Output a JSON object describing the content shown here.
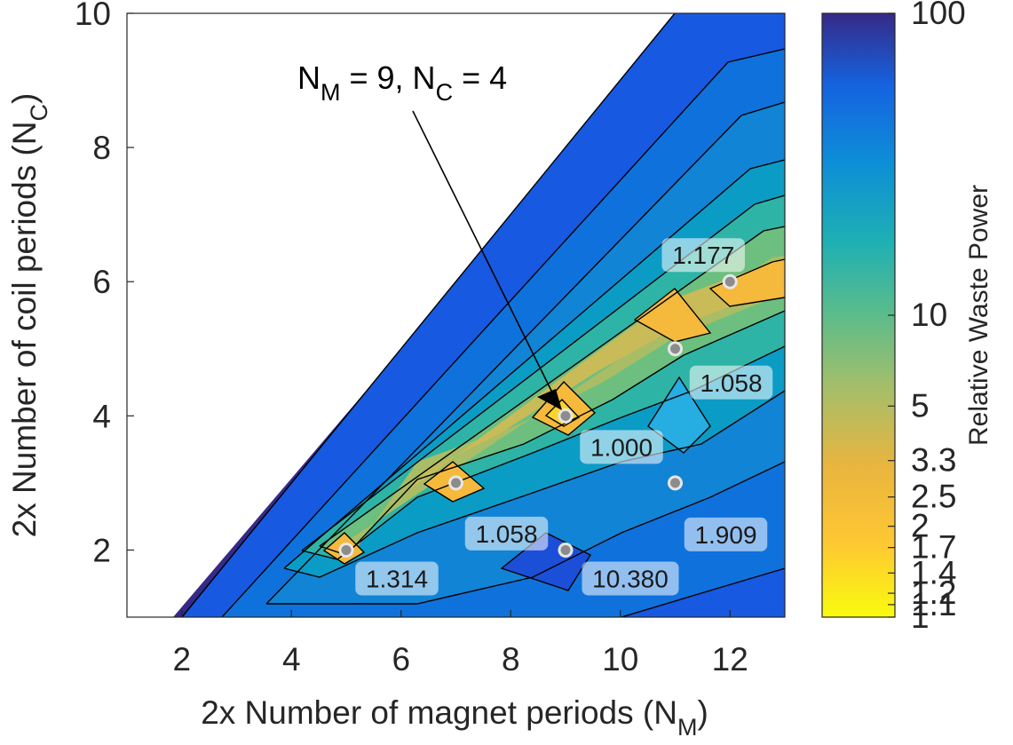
{
  "chart_data": {
    "type": "heatmap",
    "subtype": "filled-contour",
    "xlabel": {
      "main": "2x Number of magnet periods (N",
      "sub": "M",
      "tail": ")"
    },
    "ylabel": {
      "main": "2x Number of coil periods (N",
      "sub": "C",
      "tail": ")"
    },
    "xlim": [
      1,
      13
    ],
    "ylim": [
      1,
      10
    ],
    "xticks": [
      "2",
      "4",
      "6",
      "8",
      "10",
      "12"
    ],
    "yticks": [
      "2",
      "4",
      "6",
      "8",
      "10"
    ],
    "colorbar": {
      "label": "Relative Waste Power",
      "scale": "log",
      "colormap": "parula",
      "range": [
        1,
        100
      ],
      "ticks": [
        "100",
        "10",
        "5",
        "3.3",
        "2.5",
        "2",
        "1.7",
        "1.4",
        "1.2",
        "1.1",
        "1"
      ],
      "colors": [
        "#352a87",
        "#0f5cdd",
        "#1481d6",
        "#06a4ca",
        "#2eb7a4",
        "#87bf77",
        "#d1bb59",
        "#fec832",
        "#f9fb0e"
      ]
    },
    "points": [
      {
        "x": 5,
        "y": 2,
        "label": "1.314"
      },
      {
        "x": 7,
        "y": 3,
        "label": "1.058"
      },
      {
        "x": 9,
        "y": 4,
        "label": "1.000"
      },
      {
        "x": 9,
        "y": 2,
        "label": "10.380"
      },
      {
        "x": 11,
        "y": 5,
        "label": "1.058"
      },
      {
        "x": 11,
        "y": 3,
        "label": "1.909"
      },
      {
        "x": 12,
        "y": 6,
        "label": "1.177"
      }
    ],
    "annotation": {
      "text_main": "N",
      "sub1": "M",
      "mid": " = 9, N",
      "sub2": "C",
      "tail": " = 4",
      "target": {
        "x": 9,
        "y": 4
      }
    },
    "grid": false,
    "legend": "none"
  }
}
